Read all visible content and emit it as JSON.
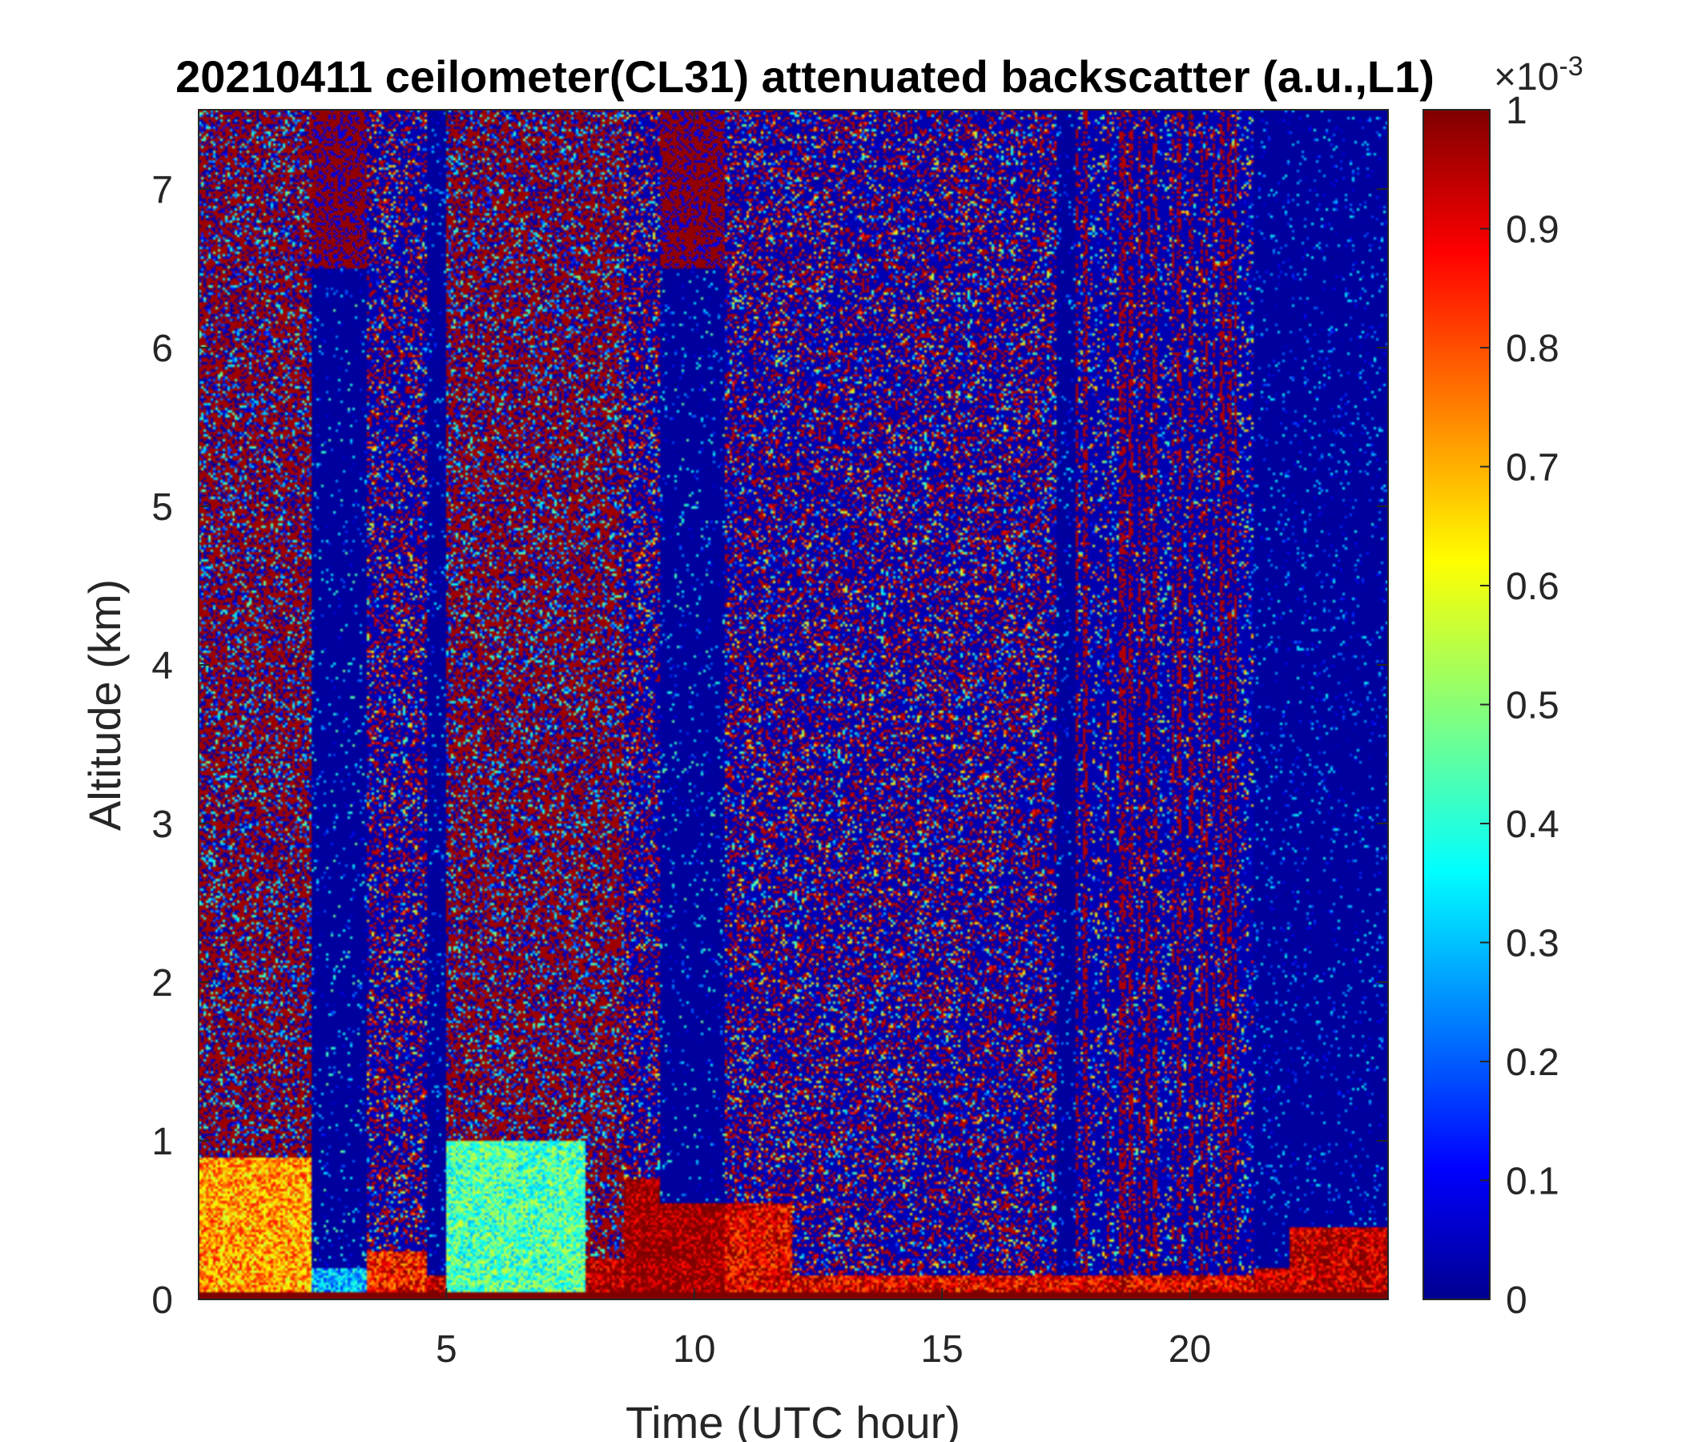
{
  "chart_data": {
    "type": "heatmap",
    "title": "20210411 ceilometer(CL31) attenuated backscatter (a.u.,L1)",
    "xlabel": "Time (UTC hour)",
    "ylabel": "Altitude (km)",
    "xlim": [
      0,
      24
    ],
    "ylim": [
      0,
      7.5
    ],
    "x_ticks": [
      5,
      10,
      15,
      20
    ],
    "y_ticks": [
      0,
      1,
      2,
      3,
      4,
      5,
      6,
      7
    ],
    "colorbar": {
      "colormap": "jet",
      "range": [
        0,
        0.001
      ],
      "ticks": [
        0,
        0.1,
        0.2,
        0.3,
        0.4,
        0.5,
        0.6,
        0.7,
        0.8,
        0.9,
        1
      ],
      "tick_labels": [
        "0",
        "0.1",
        "0.2",
        "0.3",
        "0.4",
        "0.5",
        "0.6",
        "0.7",
        "0.8",
        "0.9",
        "1"
      ],
      "exponent_base": "×10",
      "exponent": "-3"
    },
    "regimes": [
      {
        "start_hour": 0.0,
        "end_hour": 2.3,
        "aloft": "high",
        "boundary_layer_top_km": 0.9,
        "boundary_layer_level": 0.72
      },
      {
        "start_hour": 2.3,
        "end_hour": 3.4,
        "aloft": "high-over-low",
        "boundary_layer_top_km": 0.2,
        "boundary_layer_level": 0.3
      },
      {
        "start_hour": 3.4,
        "end_hour": 4.6,
        "aloft": "noisy",
        "boundary_layer_top_km": 0.3,
        "boundary_layer_level": 0.85
      },
      {
        "start_hour": 4.6,
        "end_hour": 5.0,
        "aloft": "low",
        "boundary_layer_top_km": 0.15,
        "boundary_layer_level": 0.95
      },
      {
        "start_hour": 5.0,
        "end_hour": 7.8,
        "aloft": "high",
        "boundary_layer_top_km": 1.0,
        "boundary_layer_level": 0.45
      },
      {
        "start_hour": 7.8,
        "end_hour": 8.6,
        "aloft": "high",
        "boundary_layer_top_km": 0.25,
        "boundary_layer_level": 0.95
      },
      {
        "start_hour": 8.6,
        "end_hour": 9.3,
        "aloft": "noisy",
        "boundary_layer_top_km": 0.75,
        "boundary_layer_level": 1.0
      },
      {
        "start_hour": 9.3,
        "end_hour": 10.6,
        "aloft": "high-over-low",
        "boundary_layer_top_km": 0.6,
        "boundary_layer_level": 1.0
      },
      {
        "start_hour": 10.6,
        "end_hour": 12.0,
        "aloft": "noisy",
        "boundary_layer_top_km": 0.6,
        "boundary_layer_level": 0.9
      },
      {
        "start_hour": 12.0,
        "end_hour": 17.3,
        "aloft": "noisy",
        "boundary_layer_top_km": 0.15,
        "boundary_layer_level": 0.9
      },
      {
        "start_hour": 17.3,
        "end_hour": 17.7,
        "aloft": "low",
        "boundary_layer_top_km": 0.15,
        "boundary_layer_level": 0.9
      },
      {
        "start_hour": 17.7,
        "end_hour": 21.3,
        "aloft": "mixed",
        "boundary_layer_top_km": 0.15,
        "boundary_layer_level": 0.9
      },
      {
        "start_hour": 21.3,
        "end_hour": 22.0,
        "aloft": "low",
        "boundary_layer_top_km": 0.2,
        "boundary_layer_level": 0.95
      },
      {
        "start_hour": 22.0,
        "end_hour": 24.0,
        "aloft": "low",
        "boundary_layer_top_km": 0.45,
        "boundary_layer_level": 0.95
      }
    ]
  }
}
